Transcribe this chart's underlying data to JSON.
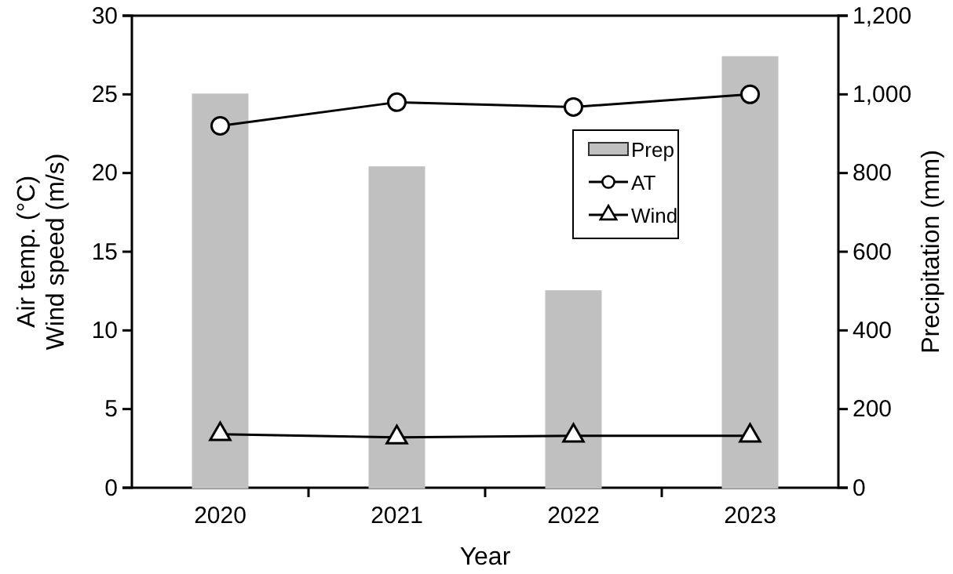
{
  "chart_data": {
    "type": "bar",
    "xlabel": "Year",
    "ylabel": "Air temp. (°C)\nWind speed (m/s)",
    "y2label": "Precipitation (mm)",
    "categories": [
      "2020",
      "2021",
      "2022",
      "2023"
    ],
    "series": [
      {
        "name": "Prep",
        "axis": "y2",
        "color": "#c0c0c0",
        "values": [
          1000,
          815,
          500,
          1095
        ]
      },
      {
        "name": "AT",
        "type": "line",
        "color": "#000000",
        "marker": "circle",
        "values": [
          23.0,
          24.5,
          24.2,
          25.0
        ]
      },
      {
        "name": "Wind",
        "type": "line",
        "color": "#000000",
        "marker": "triangle",
        "values": [
          3.4,
          3.2,
          3.3,
          3.3
        ]
      }
    ],
    "ylim": [
      0,
      30
    ],
    "yticks": [
      0,
      5,
      10,
      15,
      20,
      25,
      30
    ],
    "y2lim": [
      0,
      1200
    ],
    "y2ticks": [
      0,
      {
        "value": 200,
        "label": "200"
      },
      {
        "value": 400,
        "label": "400"
      },
      {
        "value": 600,
        "label": "600"
      },
      {
        "value": 800,
        "label": "800"
      },
      {
        "value": 1000,
        "label": "1,000"
      },
      {
        "value": 1200,
        "label": "1,200"
      }
    ],
    "legend": "top right",
    "grid": false
  }
}
